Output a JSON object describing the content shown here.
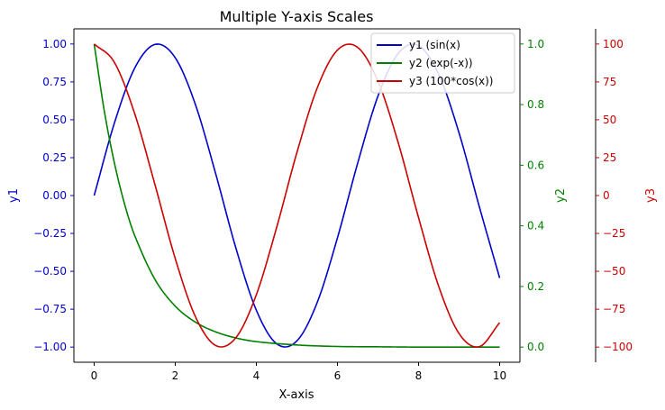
{
  "chart_data": {
    "type": "line",
    "title": "Multiple Y-axis Scales",
    "xlabel": "X-axis",
    "xlim": [
      -0.5,
      10.5
    ],
    "x_ticks": [
      0,
      2,
      4,
      6,
      8,
      10
    ],
    "x_tick_labels": [
      "0",
      "2",
      "4",
      "6",
      "8",
      "10"
    ],
    "grid": false,
    "legend_position": "top-right",
    "axes": [
      {
        "id": "y1",
        "label": "y1",
        "side": "left",
        "color": "#0000cc",
        "ylim": [
          -1.1,
          1.1
        ],
        "ticks": [
          -1.0,
          -0.75,
          -0.5,
          -0.25,
          0.0,
          0.25,
          0.5,
          0.75,
          1.0
        ],
        "tick_labels": [
          "−1.00",
          "−0.75",
          "−0.50",
          "−0.25",
          "0.00",
          "0.25",
          "0.50",
          "0.75",
          "1.00"
        ]
      },
      {
        "id": "y2",
        "label": "y2",
        "side": "right",
        "color": "#008000",
        "ylim": [
          -0.05,
          1.05
        ],
        "ticks": [
          0.0,
          0.2,
          0.4,
          0.6,
          0.8,
          1.0
        ],
        "tick_labels": [
          "0.0",
          "0.2",
          "0.4",
          "0.6",
          "0.8",
          "1.0"
        ]
      },
      {
        "id": "y3",
        "label": "y3",
        "side": "right-offset",
        "color": "#cc0000",
        "ylim": [
          -110,
          110
        ],
        "ticks": [
          -100,
          -75,
          -50,
          -25,
          0,
          25,
          50,
          75,
          100
        ],
        "tick_labels": [
          "−100",
          "−75",
          "−50",
          "−25",
          "0",
          "25",
          "50",
          "75",
          "100"
        ]
      }
    ],
    "series": [
      {
        "name": "y1 (sin(x)",
        "axis": "y1",
        "color": "#0000cc",
        "x": [
          0,
          0.5,
          1,
          1.5,
          2,
          2.5,
          3,
          3.5,
          4,
          4.5,
          5,
          5.5,
          6,
          6.5,
          7,
          7.5,
          8,
          8.5,
          9,
          9.5,
          10
        ],
        "y": [
          0.0,
          0.479,
          0.841,
          0.997,
          0.909,
          0.598,
          0.141,
          -0.351,
          -0.757,
          -0.978,
          -0.959,
          -0.706,
          -0.279,
          0.215,
          0.657,
          0.938,
          0.989,
          0.798,
          0.412,
          -0.075,
          -0.544
        ]
      },
      {
        "name": "y2 (exp(-x))",
        "axis": "y2",
        "color": "#008000",
        "x": [
          0,
          0.25,
          0.5,
          0.75,
          1,
          1.5,
          2,
          2.5,
          3,
          3.5,
          4,
          5,
          6,
          7,
          8,
          9,
          10
        ],
        "y": [
          1.0,
          0.779,
          0.607,
          0.472,
          0.368,
          0.223,
          0.135,
          0.082,
          0.05,
          0.03,
          0.018,
          0.007,
          0.002,
          0.001,
          0.0,
          0.0,
          0.0
        ]
      },
      {
        "name": "y3 (100*cos(x))",
        "axis": "y3",
        "color": "#cc0000",
        "x": [
          0,
          0.5,
          1,
          1.5,
          2,
          2.5,
          3,
          3.5,
          4,
          4.5,
          5,
          5.5,
          6,
          6.5,
          7,
          7.5,
          8,
          8.5,
          9,
          9.5,
          10
        ],
        "y": [
          100.0,
          87.8,
          54.0,
          7.1,
          -41.6,
          -80.1,
          -99.0,
          -93.6,
          -65.4,
          -21.1,
          28.4,
          70.9,
          96.0,
          97.7,
          75.4,
          34.7,
          -14.6,
          -60.2,
          -91.1,
          -99.7,
          -83.9
        ]
      }
    ]
  }
}
